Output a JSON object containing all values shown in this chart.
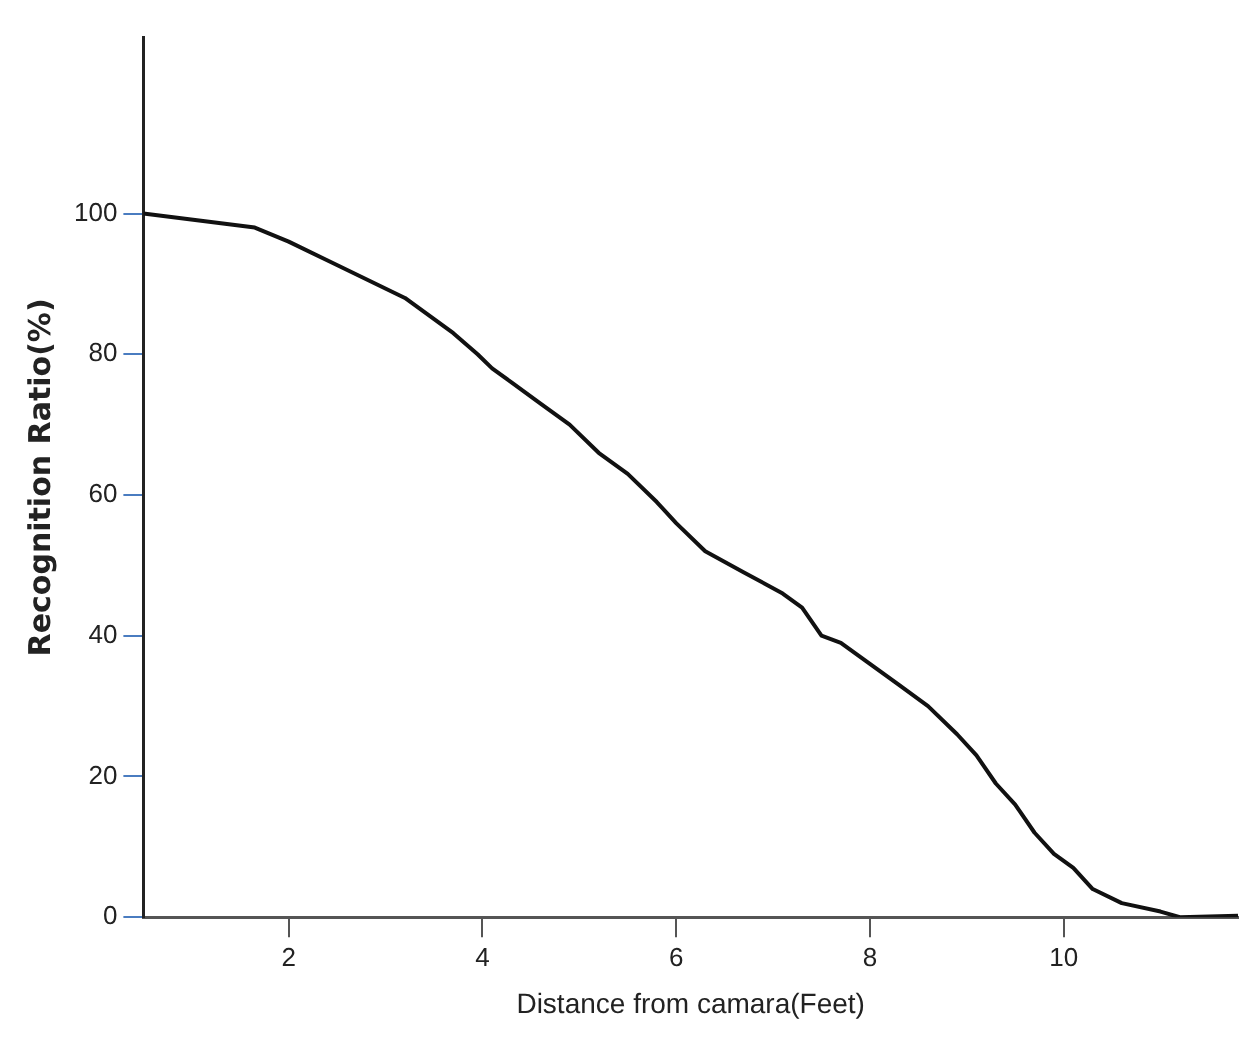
{
  "chart_data": {
    "type": "line",
    "xlabel": "Distance from camara(Feet)",
    "ylabel": "Recognition Ratio(%)",
    "xlim": [
      0.5,
      11.8
    ],
    "xticks": [
      2,
      4,
      6,
      8,
      10
    ],
    "ylim": [
      0,
      125
    ],
    "yticks": [
      0,
      20,
      40,
      60,
      80,
      100
    ],
    "grid": false,
    "legend": false,
    "marker": "none",
    "line_style": "solid",
    "series": [
      {
        "color": "#111111",
        "x": [
          0.5,
          1.65,
          2,
          2.45,
          3.2,
          3.7,
          3.95,
          4.1,
          4.3,
          4.6,
          4.9,
          5.2,
          5.5,
          5.8,
          6,
          6.3,
          6.7,
          7.1,
          7.3,
          7.5,
          7.7,
          8,
          8.3,
          8.6,
          8.9,
          9.1,
          9.3,
          9.5,
          9.7,
          9.9,
          10.1,
          10.3,
          10.6,
          11,
          11.2,
          11.8
        ],
        "values": [
          100,
          98,
          96,
          93,
          88,
          83,
          80,
          78,
          76,
          73,
          70,
          66,
          63,
          59,
          56,
          52,
          49,
          46,
          44,
          40,
          39,
          36,
          33,
          30,
          26,
          23,
          19,
          16,
          12,
          9,
          7,
          4,
          2,
          0.8,
          0,
          0.2
        ]
      }
    ]
  }
}
